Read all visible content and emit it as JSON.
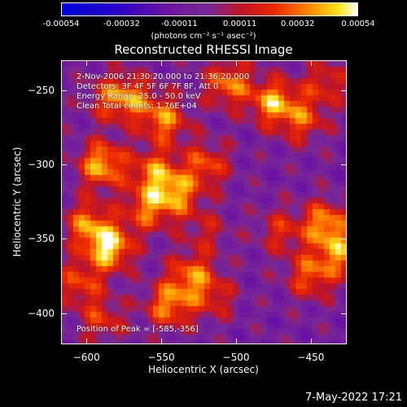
{
  "chart_data": {
    "type": "heatmap",
    "title": "Reconstructed RHESSI Image",
    "xlabel": "Heliocentric X (arcsec)",
    "ylabel": "Heliocentric Y (arcsec)",
    "xlim": [
      -617,
      -426
    ],
    "ylim": [
      -421,
      -230
    ],
    "x_ticks": [
      -600,
      -550,
      -500,
      -450
    ],
    "y_ticks": [
      -250,
      -300,
      -350,
      -400
    ],
    "colorbar": {
      "range": [
        -0.00054,
        0.00054
      ],
      "tick_labels": [
        "-0.00054",
        "-0.00032",
        "-0.00011",
        "0.00011",
        "0.00032",
        "0.00054"
      ],
      "units": "(photons cm⁻² s⁻¹ asec⁻²)"
    },
    "annotations": [
      "2-Nov-2006 21:30:20.000 to 21:36:20.000",
      "Detectors: 3F 4F 5F 6F 7F 8F, Att 0",
      "Energy Range: 25.0 - 50.0 keV",
      "Clean    Total counts: 1.76E+04"
    ],
    "peak_label": "Position of Peak = [-585,-356]",
    "peak_position": [
      -585,
      -356
    ],
    "sources": [
      {
        "x": -590,
        "y": -300,
        "strength": 0.00048
      },
      {
        "x": -585,
        "y": -356,
        "strength": 0.00054
      },
      {
        "x": -600,
        "y": -340,
        "strength": 0.00036
      },
      {
        "x": -570,
        "y": -255,
        "strength": 0.00032
      },
      {
        "x": -548,
        "y": -270,
        "strength": 0.0004
      },
      {
        "x": -555,
        "y": -305,
        "strength": 0.00036
      },
      {
        "x": -540,
        "y": -320,
        "strength": 0.0004
      },
      {
        "x": -560,
        "y": -330,
        "strength": 0.00034
      },
      {
        "x": -520,
        "y": -300,
        "strength": 0.00032
      },
      {
        "x": -505,
        "y": -245,
        "strength": 0.0004
      },
      {
        "x": -475,
        "y": -258,
        "strength": 0.00045
      },
      {
        "x": -455,
        "y": -270,
        "strength": 0.0003
      },
      {
        "x": -440,
        "y": -245,
        "strength": 0.00026
      },
      {
        "x": -530,
        "y": -375,
        "strength": 0.00036
      },
      {
        "x": -545,
        "y": -395,
        "strength": 0.0004
      },
      {
        "x": -515,
        "y": -390,
        "strength": 0.00022
      },
      {
        "x": -470,
        "y": -345,
        "strength": 0.00024
      },
      {
        "x": -440,
        "y": -340,
        "strength": 0.00042
      },
      {
        "x": -450,
        "y": -375,
        "strength": 0.00034
      },
      {
        "x": -430,
        "y": -360,
        "strength": 0.00036
      },
      {
        "x": -605,
        "y": -380,
        "strength": 0.0003
      },
      {
        "x": -590,
        "y": -405,
        "strength": 0.00026
      },
      {
        "x": -585,
        "y": -255,
        "strength": 0.00026
      },
      {
        "x": -520,
        "y": -345,
        "strength": 0.00018
      }
    ]
  },
  "footer": {
    "timestamp": "7-May-2022 17:21"
  }
}
